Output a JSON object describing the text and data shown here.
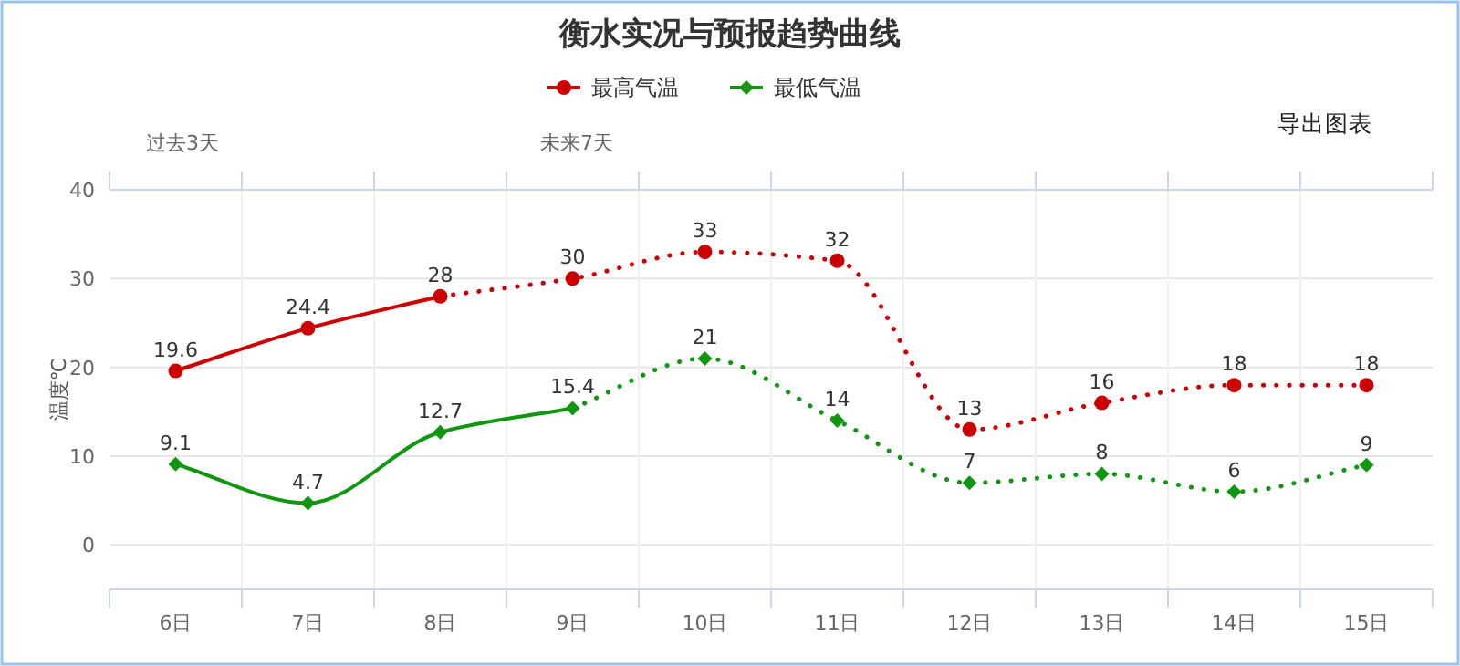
{
  "chart_data": {
    "type": "line",
    "title": "衡水实况与预报趋势曲线",
    "ylabel": "温度℃",
    "categories": [
      "6日",
      "7日",
      "8日",
      "9日",
      "10日",
      "11日",
      "12日",
      "13日",
      "14日",
      "15日"
    ],
    "series": [
      {
        "name": "最高气温",
        "color": "#cc0000",
        "marker": "circle",
        "line_style": "solid",
        "values": [
          19.6,
          24.4,
          28,
          null,
          null,
          null,
          null,
          null,
          null,
          null
        ],
        "value_labels": [
          "19.6",
          "24.4",
          "28",
          null,
          null,
          null,
          null,
          null,
          null,
          null
        ]
      },
      {
        "color": "#cc0000",
        "marker": "circle",
        "line_style": "dotted",
        "values": [
          null,
          null,
          28,
          30,
          33,
          32,
          13,
          16,
          18,
          18
        ],
        "value_labels": [
          null,
          null,
          null,
          "30",
          "33",
          "32",
          "13",
          "16",
          "18",
          "18"
        ]
      },
      {
        "name": "最低气温",
        "color": "#109610",
        "marker": "diamond",
        "line_style": "solid",
        "values": [
          9.1,
          4.7,
          12.7,
          15.4,
          null,
          null,
          null,
          null,
          null,
          null
        ],
        "value_labels": [
          "9.1",
          "4.7",
          "12.7",
          "15.4",
          null,
          null,
          null,
          null,
          null,
          null
        ]
      },
      {
        "color": "#109610",
        "marker": "diamond",
        "line_style": "dotted",
        "values": [
          null,
          null,
          null,
          15.4,
          21,
          14,
          7,
          8,
          6,
          9
        ],
        "value_labels": [
          null,
          null,
          null,
          null,
          "21",
          "14",
          "7",
          "8",
          "6",
          "9"
        ]
      }
    ],
    "ylim": [
      -5,
      40
    ],
    "yticks": [
      0,
      10,
      20,
      30,
      40
    ],
    "grid": true,
    "legend": "top",
    "annotations": [
      "过去3天",
      "未来7天",
      "导出图表"
    ]
  }
}
